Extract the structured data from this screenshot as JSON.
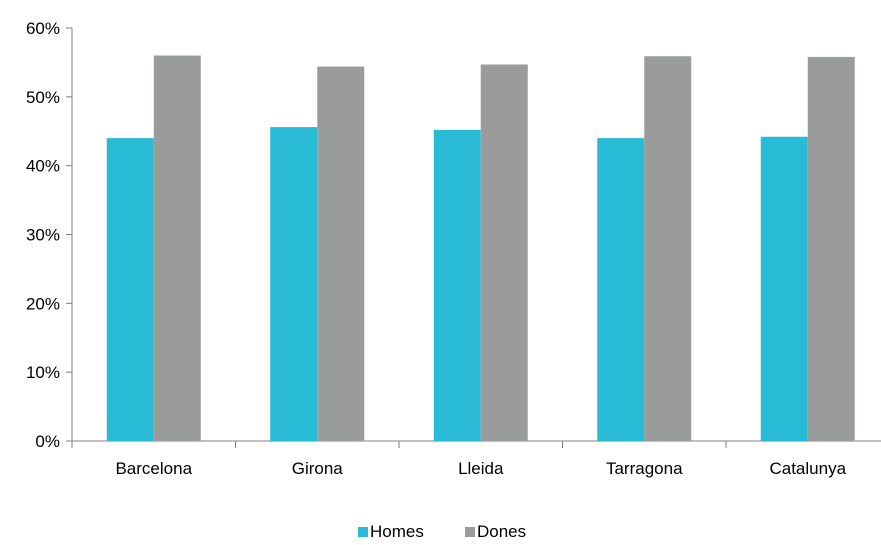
{
  "chart_data": {
    "type": "bar",
    "categories": [
      "Barcelona",
      "Girona",
      "Lleida",
      "Tarragona",
      "Catalunya"
    ],
    "series": [
      {
        "name": "Homes",
        "color": "#29BAD6",
        "values": [
          44.0,
          45.6,
          45.2,
          44.0,
          44.2
        ]
      },
      {
        "name": "Dones",
        "color": "#9A9C9C",
        "values": [
          56.0,
          54.4,
          54.7,
          55.9,
          55.8
        ]
      }
    ],
    "ylim": [
      0,
      60
    ],
    "yticks": [
      0,
      10,
      20,
      30,
      40,
      50,
      60
    ],
    "ytick_labels": [
      "0%",
      "10%",
      "20%",
      "30%",
      "40%",
      "50%",
      "60%"
    ],
    "grid": false,
    "legend": {
      "position": "bottom"
    },
    "title": "",
    "xlabel": "",
    "ylabel": ""
  }
}
